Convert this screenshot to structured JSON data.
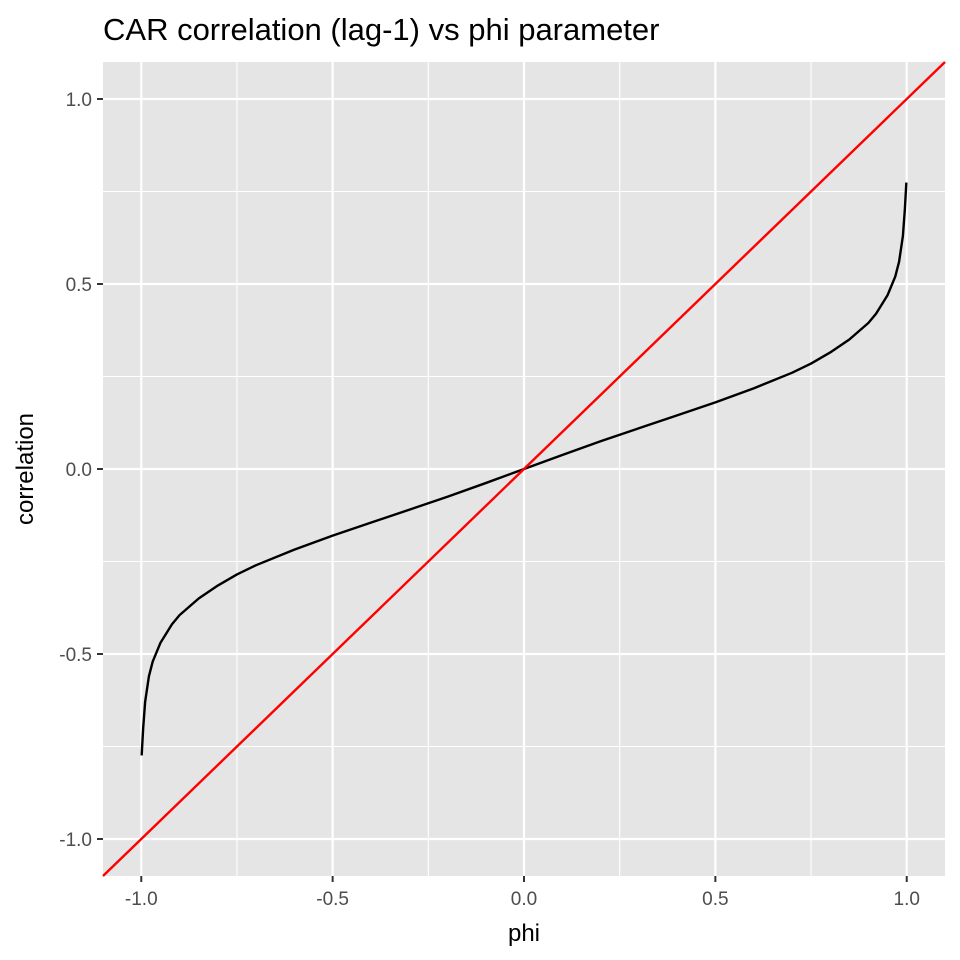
{
  "chart_data": {
    "type": "line",
    "title": "CAR correlation (lag-1) vs phi parameter",
    "xlabel": "phi",
    "ylabel": "correlation",
    "xlim": [
      -1.1,
      1.1
    ],
    "ylim": [
      -1.1,
      1.1
    ],
    "x_ticks": [
      -1.0,
      -0.5,
      0.0,
      0.5,
      1.0
    ],
    "y_ticks": [
      -1.0,
      -0.5,
      0.0,
      0.5,
      1.0
    ],
    "x_tick_labels": [
      "-1.0",
      "-0.5",
      "0.0",
      "0.5",
      "1.0"
    ],
    "y_tick_labels": [
      "-1.0",
      "-0.5",
      "0.0",
      "0.5",
      "1.0"
    ],
    "grid": true,
    "panel_background": "#e5e5e5",
    "grid_color": "#ffffff",
    "series": [
      {
        "color": "#000000",
        "x": [
          -0.999,
          -0.995,
          -0.99,
          -0.98,
          -0.97,
          -0.95,
          -0.92,
          -0.9,
          -0.85,
          -0.8,
          -0.75,
          -0.7,
          -0.6,
          -0.5,
          -0.4,
          -0.3,
          -0.2,
          -0.1,
          0.0,
          0.1,
          0.2,
          0.3,
          0.4,
          0.5,
          0.6,
          0.7,
          0.75,
          0.8,
          0.85,
          0.9,
          0.92,
          0.95,
          0.97,
          0.98,
          0.99,
          0.995,
          0.999
        ],
        "y": [
          -0.774,
          -0.7,
          -0.63,
          -0.56,
          -0.52,
          -0.47,
          -0.42,
          -0.395,
          -0.35,
          -0.315,
          -0.285,
          -0.26,
          -0.218,
          -0.18,
          -0.145,
          -0.11,
          -0.075,
          -0.038,
          0.0,
          0.038,
          0.075,
          0.11,
          0.145,
          0.18,
          0.218,
          0.26,
          0.285,
          0.315,
          0.35,
          0.395,
          0.42,
          0.47,
          0.52,
          0.56,
          0.63,
          0.7,
          0.774
        ]
      },
      {
        "color": "#ff0000",
        "x": [
          -1.1,
          1.1
        ],
        "y": [
          -1.1,
          1.1
        ]
      }
    ]
  }
}
